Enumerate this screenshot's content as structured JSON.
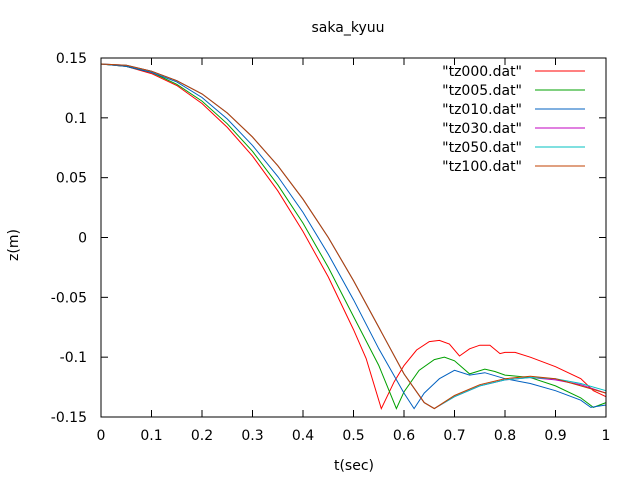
{
  "chart_data": {
    "type": "line",
    "title": "saka_kyuu",
    "xlabel": "t(sec)",
    "ylabel": "z(m)",
    "xlim": [
      0,
      1
    ],
    "ylim": [
      -0.15,
      0.15
    ],
    "x_ticks": [
      0,
      0.1,
      0.2,
      0.3,
      0.4,
      0.5,
      0.6,
      0.7,
      0.8,
      0.9,
      1
    ],
    "x_tick_labels": [
      "0",
      "0.1",
      "0.2",
      "0.3",
      "0.4",
      "0.5",
      "0.6",
      "0.7",
      "0.8",
      "0.9",
      "1"
    ],
    "y_ticks": [
      0.15,
      0.1,
      0.05,
      0,
      -0.05,
      -0.1,
      -0.15
    ],
    "y_tick_labels": [
      "0.15",
      "0.1",
      "0.05",
      "0",
      "-0.05",
      "-0.1",
      "-0.15"
    ],
    "grid": false,
    "legend_position": "top-right",
    "series": [
      {
        "name": "\"tz000.dat\"",
        "color": "#ff0000",
        "points": [
          [
            0,
            0.145
          ],
          [
            0.05,
            0.143
          ],
          [
            0.1,
            0.137
          ],
          [
            0.15,
            0.127
          ],
          [
            0.2,
            0.112
          ],
          [
            0.25,
            0.092
          ],
          [
            0.3,
            0.068
          ],
          [
            0.35,
            0.039
          ],
          [
            0.4,
            0.005
          ],
          [
            0.45,
            -0.033
          ],
          [
            0.5,
            -0.077
          ],
          [
            0.525,
            -0.101
          ],
          [
            0.555,
            -0.143
          ],
          [
            0.58,
            -0.121
          ],
          [
            0.6,
            -0.107
          ],
          [
            0.625,
            -0.094
          ],
          [
            0.65,
            -0.087
          ],
          [
            0.67,
            -0.086
          ],
          [
            0.69,
            -0.089
          ],
          [
            0.71,
            -0.099
          ],
          [
            0.73,
            -0.093
          ],
          [
            0.75,
            -0.09
          ],
          [
            0.77,
            -0.09
          ],
          [
            0.79,
            -0.097
          ],
          [
            0.8,
            -0.096
          ],
          [
            0.82,
            -0.096
          ],
          [
            0.85,
            -0.1
          ],
          [
            0.9,
            -0.108
          ],
          [
            0.95,
            -0.118
          ],
          [
            0.975,
            -0.128
          ],
          [
            1,
            -0.133
          ]
        ]
      },
      {
        "name": "\"tz005.dat\"",
        "color": "#00a000",
        "points": [
          [
            0,
            0.145
          ],
          [
            0.05,
            0.143
          ],
          [
            0.1,
            0.138
          ],
          [
            0.15,
            0.128
          ],
          [
            0.2,
            0.114
          ],
          [
            0.25,
            0.095
          ],
          [
            0.3,
            0.072
          ],
          [
            0.35,
            0.044
          ],
          [
            0.4,
            0.012
          ],
          [
            0.45,
            -0.025
          ],
          [
            0.5,
            -0.066
          ],
          [
            0.55,
            -0.107
          ],
          [
            0.585,
            -0.143
          ],
          [
            0.6,
            -0.129
          ],
          [
            0.63,
            -0.111
          ],
          [
            0.66,
            -0.102
          ],
          [
            0.68,
            -0.1
          ],
          [
            0.7,
            -0.103
          ],
          [
            0.73,
            -0.114
          ],
          [
            0.76,
            -0.11
          ],
          [
            0.78,
            -0.112
          ],
          [
            0.8,
            -0.115
          ],
          [
            0.85,
            -0.117
          ],
          [
            0.9,
            -0.124
          ],
          [
            0.95,
            -0.134
          ],
          [
            0.975,
            -0.142
          ],
          [
            1,
            -0.138
          ]
        ]
      },
      {
        "name": "\"tz010.dat\"",
        "color": "#0060c0",
        "points": [
          [
            0,
            0.145
          ],
          [
            0.05,
            0.143
          ],
          [
            0.1,
            0.138
          ],
          [
            0.15,
            0.13
          ],
          [
            0.2,
            0.117
          ],
          [
            0.25,
            0.099
          ],
          [
            0.3,
            0.077
          ],
          [
            0.35,
            0.051
          ],
          [
            0.4,
            0.021
          ],
          [
            0.45,
            -0.014
          ],
          [
            0.5,
            -0.052
          ],
          [
            0.55,
            -0.093
          ],
          [
            0.6,
            -0.13
          ],
          [
            0.62,
            -0.143
          ],
          [
            0.64,
            -0.13
          ],
          [
            0.67,
            -0.118
          ],
          [
            0.7,
            -0.111
          ],
          [
            0.73,
            -0.115
          ],
          [
            0.76,
            -0.113
          ],
          [
            0.8,
            -0.118
          ],
          [
            0.85,
            -0.122
          ],
          [
            0.9,
            -0.128
          ],
          [
            0.95,
            -0.136
          ],
          [
            0.97,
            -0.142
          ],
          [
            1,
            -0.14
          ]
        ]
      },
      {
        "name": "\"tz030.dat\"",
        "color": "#c000c0",
        "points": [
          [
            0,
            0.145
          ],
          [
            0.05,
            0.144
          ],
          [
            0.1,
            0.139
          ],
          [
            0.15,
            0.131
          ],
          [
            0.2,
            0.12
          ],
          [
            0.25,
            0.104
          ],
          [
            0.3,
            0.084
          ],
          [
            0.35,
            0.06
          ],
          [
            0.4,
            0.032
          ],
          [
            0.45,
            0.0
          ],
          [
            0.5,
            -0.036
          ],
          [
            0.55,
            -0.075
          ],
          [
            0.6,
            -0.114
          ],
          [
            0.64,
            -0.138
          ],
          [
            0.66,
            -0.143
          ],
          [
            0.7,
            -0.133
          ],
          [
            0.75,
            -0.124
          ],
          [
            0.8,
            -0.119
          ],
          [
            0.85,
            -0.117
          ],
          [
            0.9,
            -0.119
          ],
          [
            0.95,
            -0.123
          ],
          [
            1,
            -0.13
          ]
        ]
      },
      {
        "name": "\"tz050.dat\"",
        "color": "#00c0c0",
        "points": [
          [
            0,
            0.145
          ],
          [
            0.05,
            0.144
          ],
          [
            0.1,
            0.139
          ],
          [
            0.15,
            0.131
          ],
          [
            0.2,
            0.12
          ],
          [
            0.25,
            0.104
          ],
          [
            0.3,
            0.084
          ],
          [
            0.35,
            0.06
          ],
          [
            0.4,
            0.032
          ],
          [
            0.45,
            0.0
          ],
          [
            0.5,
            -0.036
          ],
          [
            0.55,
            -0.075
          ],
          [
            0.6,
            -0.114
          ],
          [
            0.64,
            -0.138
          ],
          [
            0.66,
            -0.143
          ],
          [
            0.7,
            -0.133
          ],
          [
            0.75,
            -0.124
          ],
          [
            0.8,
            -0.119
          ],
          [
            0.85,
            -0.117
          ],
          [
            0.9,
            -0.118
          ],
          [
            0.95,
            -0.122
          ],
          [
            1,
            -0.128
          ]
        ]
      },
      {
        "name": "\"tz100.dat\"",
        "color": "#c04000",
        "points": [
          [
            0,
            0.145
          ],
          [
            0.05,
            0.144
          ],
          [
            0.1,
            0.139
          ],
          [
            0.15,
            0.131
          ],
          [
            0.2,
            0.12
          ],
          [
            0.25,
            0.104
          ],
          [
            0.3,
            0.084
          ],
          [
            0.35,
            0.06
          ],
          [
            0.4,
            0.032
          ],
          [
            0.45,
            0.0
          ],
          [
            0.5,
            -0.036
          ],
          [
            0.55,
            -0.075
          ],
          [
            0.6,
            -0.114
          ],
          [
            0.64,
            -0.138
          ],
          [
            0.66,
            -0.143
          ],
          [
            0.7,
            -0.132
          ],
          [
            0.75,
            -0.123
          ],
          [
            0.8,
            -0.118
          ],
          [
            0.85,
            -0.116
          ],
          [
            0.9,
            -0.118
          ],
          [
            0.95,
            -0.124
          ],
          [
            1,
            -0.13
          ]
        ]
      }
    ]
  }
}
